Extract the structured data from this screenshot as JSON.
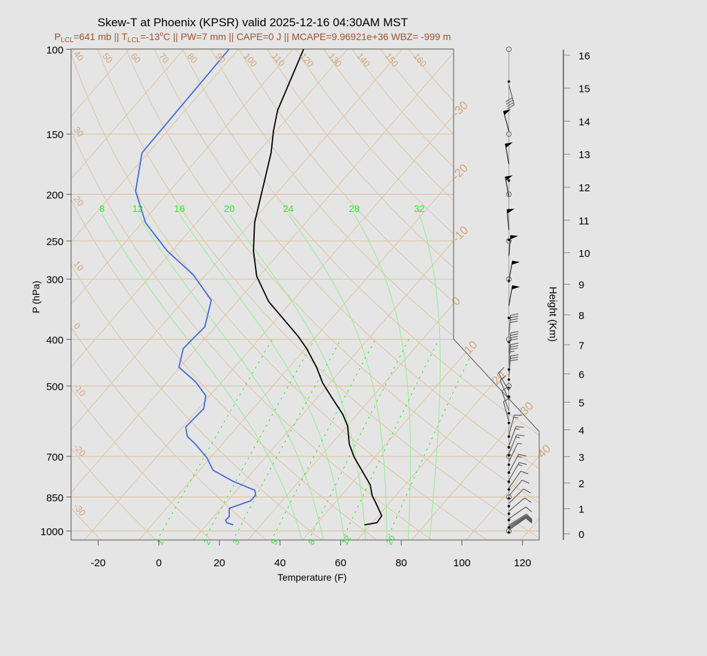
{
  "title": "Skew-T at Phoenix (KPSR) valid 2025-12-16 04:30AM MST",
  "subtitle": {
    "p_symbol": "P",
    "lcl_sub": "LCL",
    "p_lcl": "=641 mb || T",
    "t_sub": "LCL",
    "t_lcl": "=-13",
    "deg": "o",
    "rest": "C || PW=7 mm || CAPE=0 J || MCAPE=9.96921e+36 WBZ= -999 m"
  },
  "colors": {
    "background": "#e5e5e5",
    "temperature": "#000000",
    "dewpoint": "#4169e1",
    "isotherm_adiabat": "#ddc4a0",
    "moist_adiabat": "#90ee90",
    "mixing_ratio": "#22ee22",
    "subtitle": "#a0522d"
  },
  "chart_data": {
    "type": "skew-t",
    "title": "Skew-T at Phoenix (KPSR) valid 2025-12-16 04:30AM MST",
    "xlabel": "Temperature (F)",
    "ylabel": "P (hPa)",
    "y2label": "Height (Km)",
    "xlim": [
      -28,
      125
    ],
    "ylim": [
      1044,
      100
    ],
    "y_scale": "log",
    "x_ticks": [
      "-20",
      "0",
      "20",
      "40",
      "60",
      "80",
      "100",
      "120"
    ],
    "y_ticks": [
      "100",
      "150",
      "200",
      "250",
      "300",
      "400",
      "500",
      "700",
      "850",
      "1000"
    ],
    "height_ticks": [
      "0",
      "1",
      "2",
      "3",
      "4",
      "5",
      "6",
      "7",
      "8",
      "9",
      "10",
      "11",
      "12",
      "13",
      "14",
      "15",
      "16"
    ],
    "isotherm_labels_c": [
      "-30",
      "-20",
      "-10",
      "0",
      "10",
      "20",
      "30",
      "40"
    ],
    "dry_adiabat_labels_c": [
      "-30",
      "-20",
      "-10",
      "0",
      "10",
      "20",
      "30",
      "40",
      "50",
      "60",
      "70",
      "80",
      "90",
      "100",
      "110",
      "120",
      "130",
      "140",
      "150",
      "160"
    ],
    "moist_adiabat_labels_c": [
      "8",
      "12",
      "16",
      "20",
      "24",
      "28",
      "32"
    ],
    "mixing_ratio_labels_gkg": [
      "1",
      "2",
      "3",
      "5",
      "8",
      "12",
      "20"
    ],
    "temperature_profile": {
      "name": "temperature",
      "pressure_hpa": [
        971,
        961,
        930,
        873,
        845,
        801,
        703,
        660,
        605,
        573,
        527,
        493,
        457,
        418,
        395,
        334,
        296,
        262,
        229,
        164,
        148,
        134,
        100
      ],
      "temp_f": [
        66.1,
        69.6,
        69.2,
        63.4,
        60.3,
        56.4,
        43.3,
        37.9,
        32.1,
        27.3,
        18.5,
        11.6,
        5.0,
        -3.6,
        -9.7,
        -29.6,
        -40.8,
        -49.2,
        -56.9,
        -71.5,
        -76.9,
        -81.5,
        -90.5
      ]
    },
    "dewpoint_profile": {
      "name": "dewpoint",
      "pressure_hpa": [
        971,
        961,
        949,
        933,
        897,
        879,
        865,
        842,
        823,
        788,
        748,
        705,
        660,
        636,
        608,
        557,
        524,
        490,
        457,
        418,
        398,
        377,
        332,
        294,
        262,
        229,
        197,
        164,
        100
      ],
      "dewpoint_f": [
        22.8,
        20.0,
        18.9,
        19.1,
        16.7,
        19.6,
        21.6,
        21.6,
        20.0,
        10.1,
        0.5,
        -5.1,
        -12.9,
        -17.8,
        -21.0,
        -20.3,
        -23.3,
        -30.7,
        -40.4,
        -44.3,
        -43.9,
        -43.4,
        -48.9,
        -62.1,
        -77.7,
        -92.9,
        -105.2,
        -114.1,
        -115.1
      ]
    },
    "winds": [
      {
        "height_km": 0.15,
        "dir_deg": 55,
        "speed_kt": 12
      },
      {
        "height_km": 0.2,
        "dir_deg": 56,
        "speed_kt": 12
      },
      {
        "height_km": 0.25,
        "dir_deg": 57,
        "speed_kt": 12
      },
      {
        "height_km": 0.3,
        "dir_deg": 58,
        "speed_kt": 12
      },
      {
        "height_km": 0.35,
        "dir_deg": 58,
        "speed_kt": 12
      },
      {
        "height_km": 0.6,
        "dir_deg": 55,
        "speed_kt": 10
      },
      {
        "height_km": 0.9,
        "dir_deg": 50,
        "speed_kt": 10
      },
      {
        "height_km": 1.2,
        "dir_deg": 45,
        "speed_kt": 10
      },
      {
        "height_km": 1.5,
        "dir_deg": 40,
        "speed_kt": 10
      },
      {
        "height_km": 1.8,
        "dir_deg": 35,
        "speed_kt": 10
      },
      {
        "height_km": 2.1,
        "dir_deg": 30,
        "speed_kt": 15
      },
      {
        "height_km": 2.4,
        "dir_deg": 28,
        "speed_kt": 15
      },
      {
        "height_km": 2.8,
        "dir_deg": 25,
        "speed_kt": 5
      },
      {
        "height_km": 3.1,
        "dir_deg": 22,
        "speed_kt": 15
      },
      {
        "height_km": 3.4,
        "dir_deg": 20,
        "speed_kt": 15
      },
      {
        "height_km": 3.8,
        "dir_deg": 15,
        "speed_kt": 15
      },
      {
        "height_km": 4.3,
        "dir_deg": 345,
        "speed_kt": 10
      },
      {
        "height_km": 4.7,
        "dir_deg": 340,
        "speed_kt": 10
      },
      {
        "height_km": 5.1,
        "dir_deg": 335,
        "speed_kt": 10
      },
      {
        "height_km": 5.4,
        "dir_deg": 330,
        "speed_kt": 10
      },
      {
        "height_km": 5.9,
        "dir_deg": 5,
        "speed_kt": 30
      },
      {
        "height_km": 6.3,
        "dir_deg": 5,
        "speed_kt": 35
      },
      {
        "height_km": 6.7,
        "dir_deg": 5,
        "speed_kt": 40
      },
      {
        "height_km": 7.3,
        "dir_deg": 5,
        "speed_kt": 40
      },
      {
        "height_km": 8.3,
        "dir_deg": 10,
        "speed_kt": 50
      },
      {
        "height_km": 9.1,
        "dir_deg": 10,
        "speed_kt": 50
      },
      {
        "height_km": 9.9,
        "dir_deg": 5,
        "speed_kt": 50
      },
      {
        "height_km": 10.7,
        "dir_deg": 355,
        "speed_kt": 50
      },
      {
        "height_km": 11.7,
        "dir_deg": 350,
        "speed_kt": 50
      },
      {
        "height_km": 12.7,
        "dir_deg": 350,
        "speed_kt": 50
      },
      {
        "height_km": 13.7,
        "dir_deg": 345,
        "speed_kt": 50
      },
      {
        "height_km": 15.1,
        "dir_deg": 165,
        "speed_kt": 40
      }
    ],
    "level_dots_km": [
      0.05,
      0.25,
      0.55,
      0.8,
      1.1,
      1.4,
      1.75,
      2.05,
      2.4,
      2.7,
      3.05,
      3.35,
      3.75,
      4.25,
      4.6,
      5.2,
      5.5,
      5.8,
      6.15,
      7.1,
      7.9,
      9.1,
      10.4,
      11.3,
      12.2,
      15.2
    ],
    "mandatory_level_circles_hpa": [
      1000,
      850,
      700,
      500,
      400,
      300,
      250,
      200,
      150,
      100
    ]
  }
}
